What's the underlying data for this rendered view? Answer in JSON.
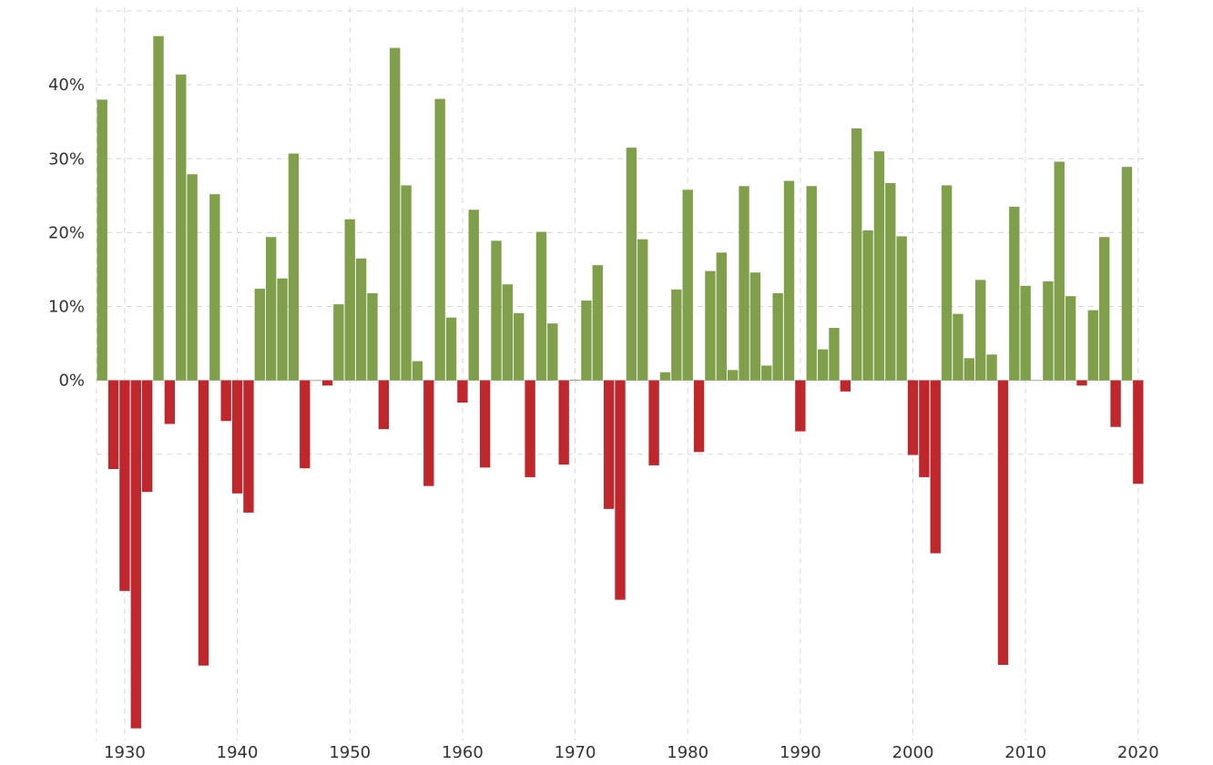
{
  "chart_data": {
    "type": "bar",
    "title": "",
    "xlabel": "",
    "ylabel": "",
    "x_ticks": [
      "1930",
      "1940",
      "1950",
      "1960",
      "1970",
      "1980",
      "1990",
      "2000",
      "2010",
      "2020"
    ],
    "y_ticks": [
      "0%",
      "10%",
      "20%",
      "30%",
      "40%"
    ],
    "y_tick_values": [
      0,
      10,
      20,
      30,
      40
    ],
    "xlim": [
      1927.5,
      2020.5
    ],
    "ylim": [
      -47.5,
      50.5
    ],
    "grid": true,
    "colors": {
      "positive": "#7f9f4a",
      "negative": "#c0272d"
    },
    "years": [
      1928,
      1929,
      1930,
      1931,
      1932,
      1933,
      1934,
      1935,
      1936,
      1937,
      1938,
      1939,
      1940,
      1941,
      1942,
      1943,
      1944,
      1945,
      1946,
      1947,
      1948,
      1949,
      1950,
      1951,
      1952,
      1953,
      1954,
      1955,
      1956,
      1957,
      1958,
      1959,
      1960,
      1961,
      1962,
      1963,
      1964,
      1965,
      1966,
      1967,
      1968,
      1969,
      1970,
      1971,
      1972,
      1973,
      1974,
      1975,
      1976,
      1977,
      1978,
      1979,
      1980,
      1981,
      1982,
      1983,
      1984,
      1985,
      1986,
      1987,
      1988,
      1989,
      1990,
      1991,
      1992,
      1993,
      1994,
      1995,
      1996,
      1997,
      1998,
      1999,
      2000,
      2001,
      2002,
      2003,
      2004,
      2005,
      2006,
      2007,
      2008,
      2009,
      2010,
      2011,
      2012,
      2013,
      2014,
      2015,
      2016,
      2017,
      2018,
      2019,
      2020
    ],
    "values": [
      38.0,
      -12.0,
      -28.5,
      -47.1,
      -15.1,
      46.6,
      -5.9,
      41.4,
      27.9,
      -38.6,
      25.2,
      -5.5,
      -15.3,
      -17.9,
      12.4,
      19.4,
      13.8,
      30.7,
      -11.9,
      0.0,
      -0.7,
      10.3,
      21.8,
      16.5,
      11.8,
      -6.6,
      45.0,
      26.4,
      2.6,
      -14.3,
      38.1,
      8.5,
      -3.0,
      23.1,
      -11.8,
      18.9,
      13.0,
      9.1,
      -13.1,
      20.1,
      7.7,
      -11.4,
      0.1,
      10.8,
      15.6,
      -17.4,
      -29.7,
      31.5,
      19.1,
      -11.5,
      1.1,
      12.3,
      25.8,
      -9.7,
      14.8,
      17.3,
      1.4,
      26.3,
      14.6,
      2.0,
      11.8,
      27.0,
      -6.9,
      26.3,
      4.2,
      7.1,
      -1.5,
      34.1,
      20.3,
      31.0,
      26.7,
      19.5,
      -10.1,
      -13.1,
      -23.4,
      26.4,
      9.0,
      3.0,
      13.6,
      3.5,
      -38.5,
      23.5,
      12.8,
      0.0,
      13.4,
      29.6,
      11.4,
      -0.7,
      9.5,
      19.4,
      -6.3,
      28.9,
      -14.0
    ]
  }
}
